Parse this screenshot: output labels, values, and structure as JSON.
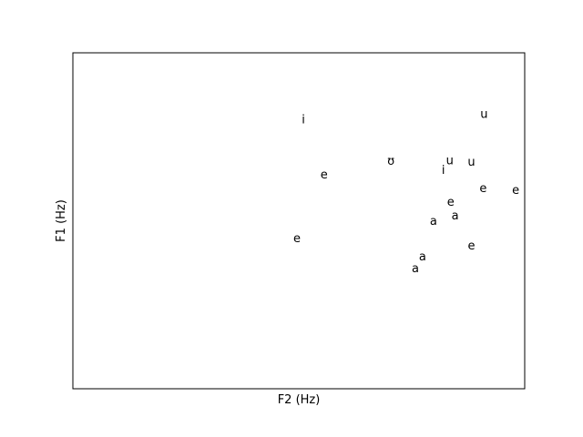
{
  "chart_data": {
    "type": "scatter",
    "xlabel": "F2 (Hz)",
    "ylabel": "F1 (Hz)",
    "xlim": [
      0,
      100
    ],
    "ylim": [
      0,
      100
    ],
    "ticks_visible": false,
    "grid": false,
    "legend": "none",
    "points": [
      {
        "label": "i",
        "x": 51.0,
        "y": 80.0
      },
      {
        "label": "u",
        "x": 91.0,
        "y": 81.6
      },
      {
        "label": "ʊ",
        "x": 70.4,
        "y": 67.6
      },
      {
        "label": "u",
        "x": 83.4,
        "y": 67.8
      },
      {
        "label": "u",
        "x": 88.2,
        "y": 67.3
      },
      {
        "label": "i",
        "x": 82.0,
        "y": 64.9
      },
      {
        "label": "e",
        "x": 55.6,
        "y": 63.5
      },
      {
        "label": "e",
        "x": 90.8,
        "y": 59.5
      },
      {
        "label": "e",
        "x": 98.0,
        "y": 58.9
      },
      {
        "label": "e",
        "x": 83.6,
        "y": 55.4
      },
      {
        "label": "a",
        "x": 84.6,
        "y": 51.4
      },
      {
        "label": "a",
        "x": 79.8,
        "y": 49.7
      },
      {
        "label": "e",
        "x": 49.6,
        "y": 44.6
      },
      {
        "label": "e",
        "x": 88.2,
        "y": 42.4
      },
      {
        "label": "a",
        "x": 77.4,
        "y": 39.2
      },
      {
        "label": "a",
        "x": 75.8,
        "y": 35.7
      }
    ]
  }
}
